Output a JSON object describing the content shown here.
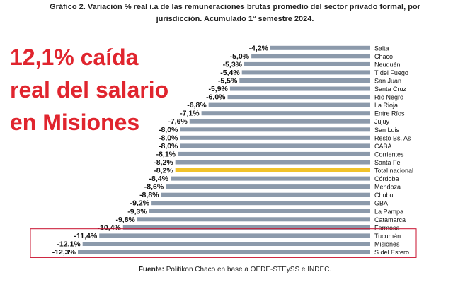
{
  "title_line1": "Gráfico 2. Variación % real i.a de las remuneraciones brutas promedio del sector privado formal, por",
  "title_line2": "jurisdicción. Acumulado 1° semestre 2024.",
  "overlay": {
    "line1": "12,1% caída",
    "line2": "real del salario",
    "line3": "en Misiones",
    "color": "#e0252e"
  },
  "source_label": "Fuente:",
  "source_text": "Politikon Chaco en base a OEDE-STEySS e INDEC.",
  "colors": {
    "bar": "#8c9aab",
    "highlight": "#f0c22b",
    "box": "#c8102e"
  },
  "chart_data": {
    "type": "bar",
    "orientation": "horizontal",
    "categories": [
      "Salta",
      "Chaco",
      "Neuquén",
      "T del Fuego",
      "San Juan",
      "Santa Cruz",
      "Río Negro",
      "La Rioja",
      "Entre Ríos",
      "Jujuy",
      "San Luis",
      "Resto Bs. As",
      "CABA",
      "Corrientes",
      "Santa Fe",
      "Total nacional",
      "Córdoba",
      "Mendoza",
      "Chubut",
      "GBA",
      "La Pampa",
      "Catamarca",
      "Formosa",
      "Tucumán",
      "Misiones",
      "S del Estero"
    ],
    "values": [
      -4.2,
      -5.0,
      -5.3,
      -5.4,
      -5.5,
      -5.9,
      -6.0,
      -6.8,
      -7.1,
      -7.6,
      -8.0,
      -8.0,
      -8.0,
      -8.1,
      -8.2,
      -8.2,
      -8.4,
      -8.6,
      -8.8,
      -9.2,
      -9.3,
      -9.8,
      -10.4,
      -11.4,
      -12.1,
      -12.3
    ],
    "labels": [
      "-4,2%",
      "-5,0%",
      "-5,3%",
      "-5,4%",
      "-5,5%",
      "-5,9%",
      "-6,0%",
      "-6,8%",
      "-7,1%",
      "-7,6%",
      "-8,0%",
      "-8,0%",
      "-8,0%",
      "-8,1%",
      "-8,2%",
      "-8,2%",
      "-8,4%",
      "-8,6%",
      "-8,8%",
      "-9,2%",
      "-9,3%",
      "-9,8%",
      "-10,4%",
      "-11,4%",
      "-12,1%",
      "-12,3%"
    ],
    "highlight": [
      "Total nacional"
    ],
    "boxed": [
      "Tucumán",
      "Misiones",
      "S del Estero"
    ],
    "xlim": [
      -12.3,
      0
    ],
    "grid": false,
    "legend": "none"
  }
}
